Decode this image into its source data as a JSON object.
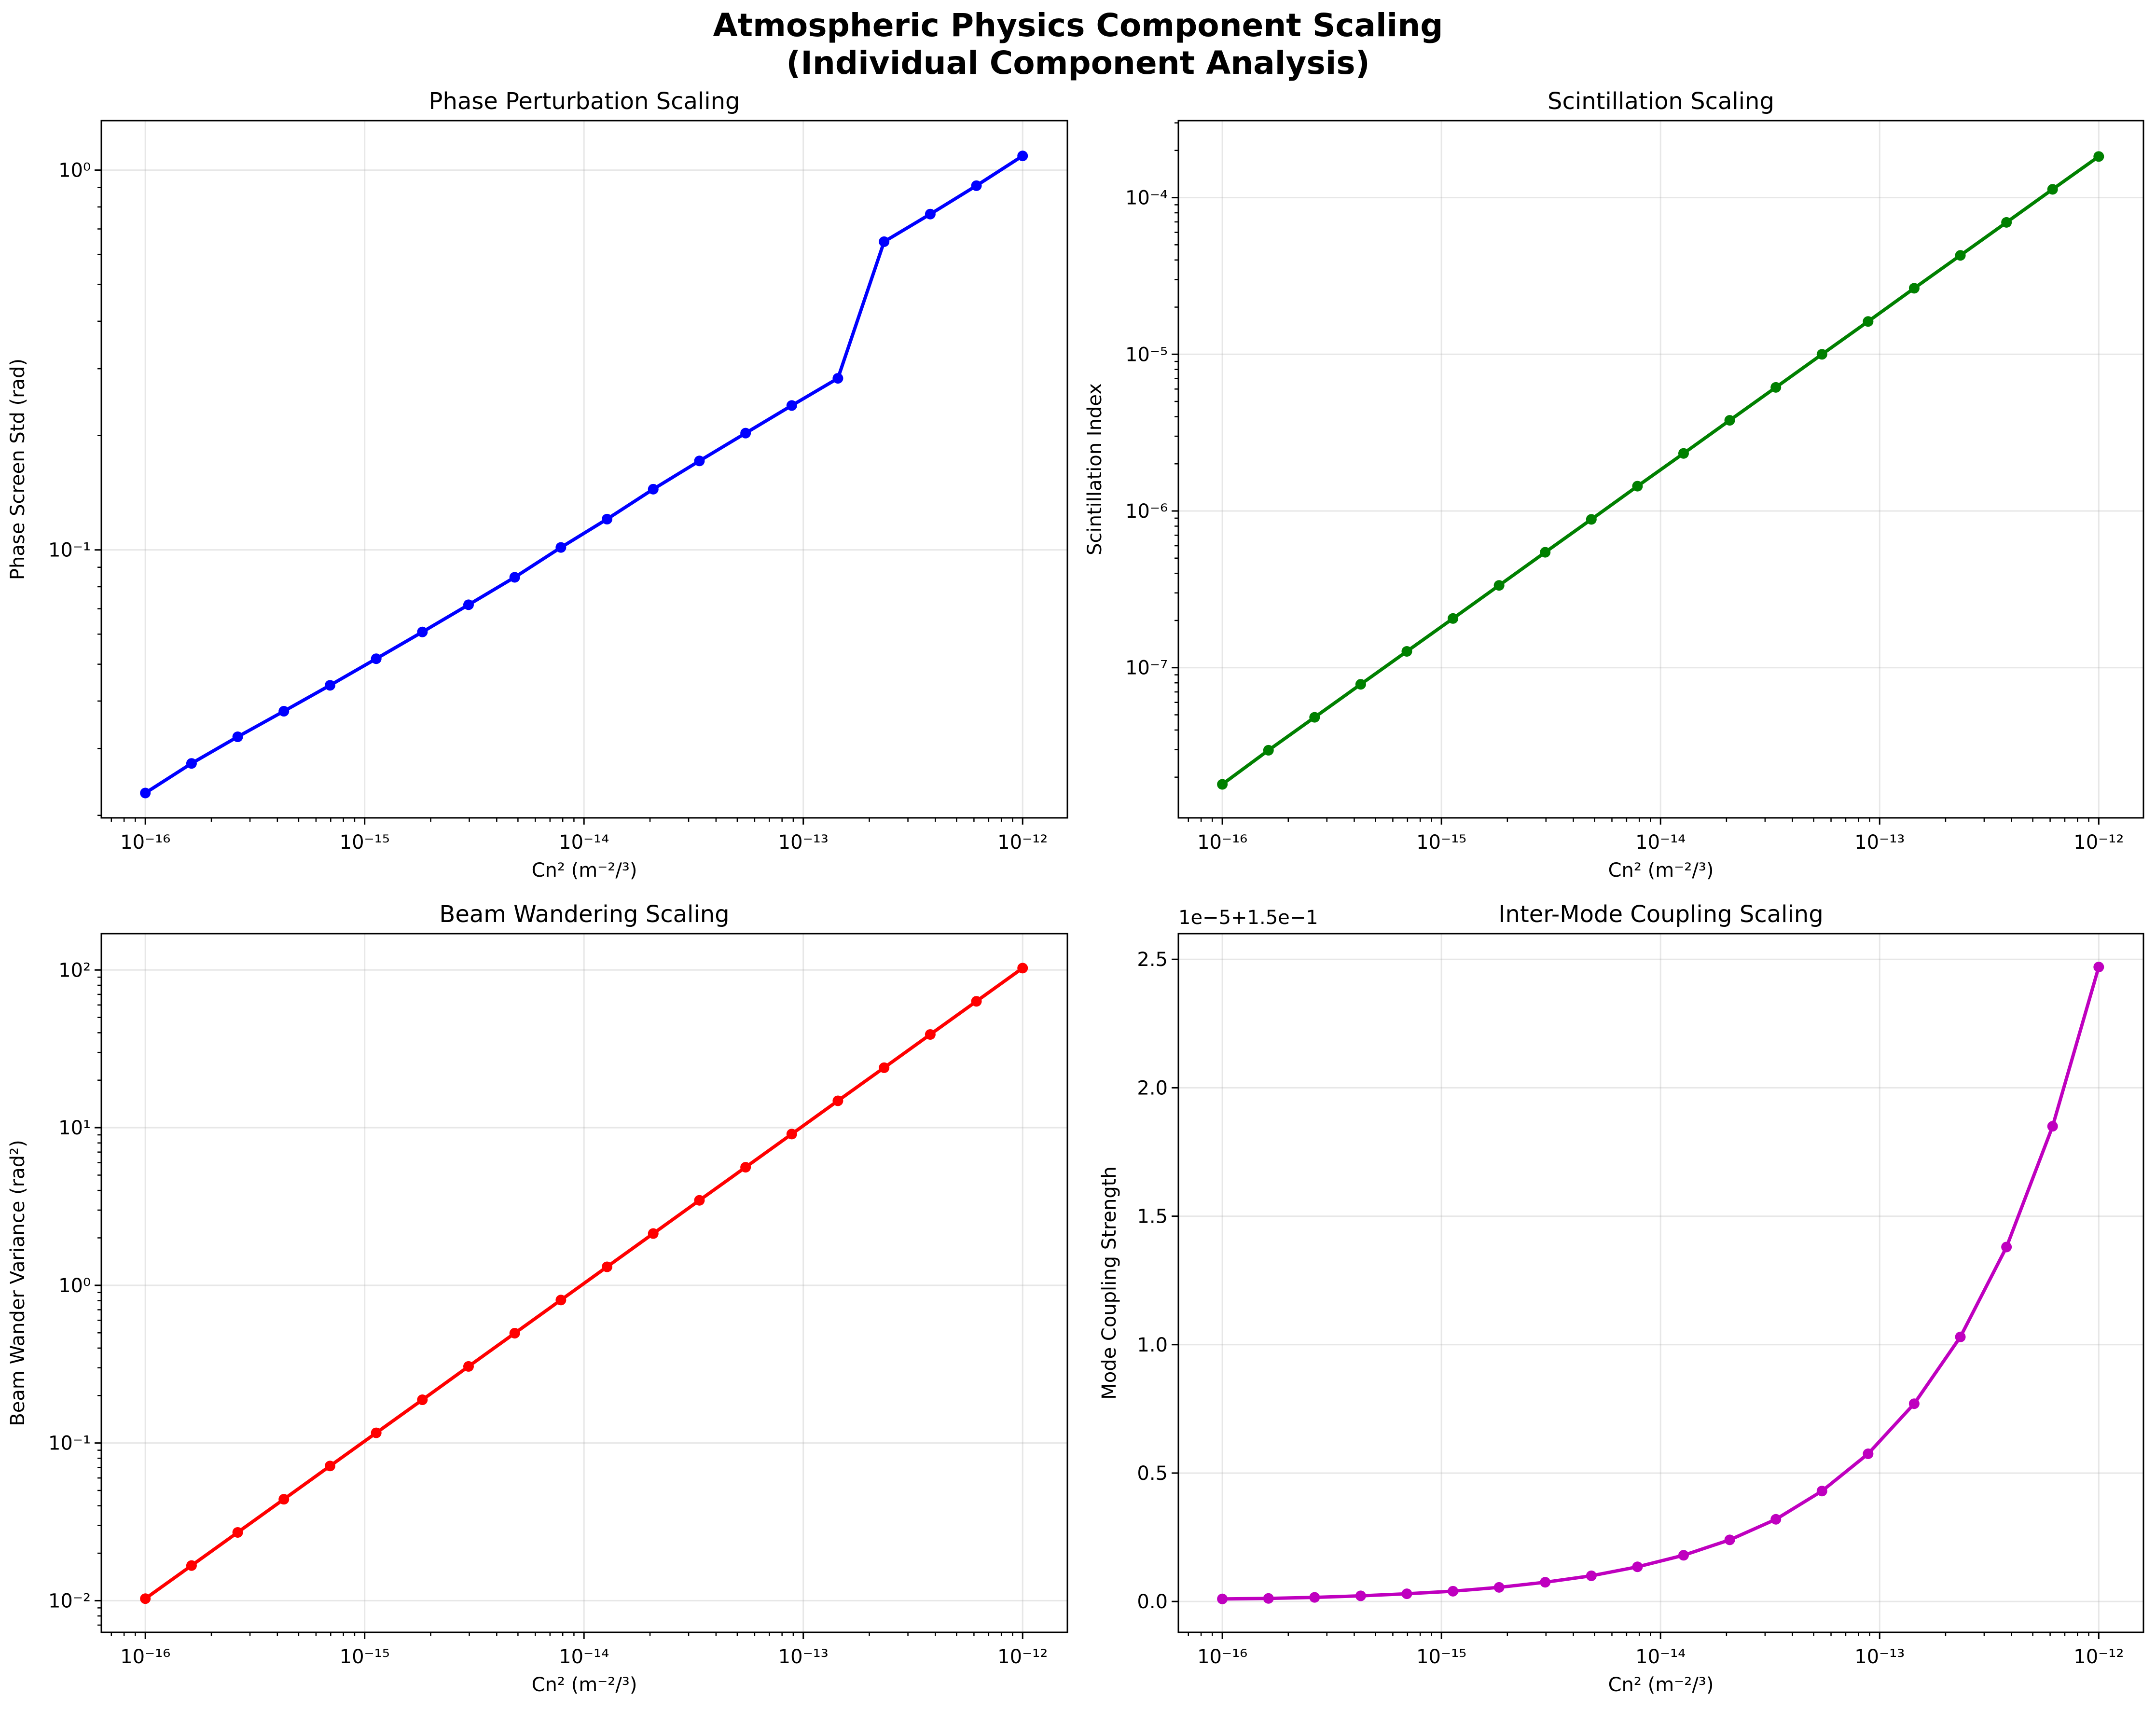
{
  "figure": {
    "title_line1": "Atmospheric Physics Component Scaling",
    "title_line2": "(Individual Component Analysis)"
  },
  "chart_data": [
    {
      "type": "line",
      "title": "Phase Perturbation Scaling",
      "xlabel": "Cn² (m⁻²/³)",
      "ylabel": "Phase Screen Std (rad)",
      "xscale": "log",
      "yscale": "log",
      "xlim": [
        6.3e-17,
        1.6e-12
      ],
      "ylim": [
        0.0197,
        1.35
      ],
      "grid": true,
      "color": "#0000ff",
      "x": [
        1e-16,
        1.624e-16,
        2.637e-16,
        4.281e-16,
        6.952e-16,
        1.129e-15,
        1.833e-15,
        2.976e-15,
        4.833e-15,
        7.848e-15,
        1.274e-14,
        2.069e-14,
        3.36e-14,
        5.456e-14,
        8.859e-14,
        1.438e-13,
        2.336e-13,
        3.793e-13,
        6.158e-13,
        1e-12
      ],
      "y": [
        0.0229,
        0.0274,
        0.0322,
        0.0376,
        0.044,
        0.0517,
        0.0608,
        0.0717,
        0.0847,
        0.1015,
        0.1205,
        0.1445,
        0.1715,
        0.203,
        0.24,
        0.283,
        0.648,
        0.766,
        0.91,
        1.09
      ],
      "xticks": [
        "10⁻¹⁶",
        "10⁻¹⁵",
        "10⁻¹⁴",
        "10⁻¹³",
        "10⁻¹²"
      ],
      "yticks": [
        "10⁻¹",
        "10⁰"
      ]
    },
    {
      "type": "line",
      "title": "Scintillation Scaling",
      "xlabel": "Cn² (m⁻²/³)",
      "ylabel": "Scintillation Index",
      "xscale": "log",
      "yscale": "log",
      "xlim": [
        6.3e-17,
        1.6e-12
      ],
      "ylim": [
        1.1e-08,
        0.00031
      ],
      "grid": true,
      "color": "#008000",
      "x": [
        1e-16,
        1.624e-16,
        2.637e-16,
        4.281e-16,
        6.952e-16,
        1.129e-15,
        1.833e-15,
        2.976e-15,
        4.833e-15,
        7.848e-15,
        1.274e-14,
        2.069e-14,
        3.36e-14,
        5.456e-14,
        8.859e-14,
        1.438e-13,
        2.336e-13,
        3.793e-13,
        6.158e-13,
        1e-12
      ],
      "y": [
        1.8e-08,
        2.97e-08,
        4.82e-08,
        7.83e-08,
        1.27e-07,
        2.06e-07,
        3.35e-07,
        5.45e-07,
        8.84e-07,
        1.44e-06,
        2.33e-06,
        3.79e-06,
        6.15e-06,
        1e-05,
        1.62e-05,
        2.64e-05,
        4.28e-05,
        6.95e-05,
        0.000113,
        0.000183
      ],
      "xticks": [
        "10⁻¹⁶",
        "10⁻¹⁵",
        "10⁻¹⁴",
        "10⁻¹³",
        "10⁻¹²"
      ],
      "yticks": [
        "10⁻⁷",
        "10⁻⁶",
        "10⁻⁵",
        "10⁻⁴"
      ]
    },
    {
      "type": "line",
      "title": "Beam Wandering Scaling",
      "xlabel": "Cn² (m⁻²/³)",
      "ylabel": "Beam Wander Variance (rad²)",
      "xscale": "log",
      "yscale": "log",
      "xlim": [
        6.3e-17,
        1.6e-12
      ],
      "ylim": [
        0.0063,
        170
      ],
      "grid": true,
      "color": "#ff0000",
      "x": [
        1e-16,
        1.624e-16,
        2.637e-16,
        4.281e-16,
        6.952e-16,
        1.129e-15,
        1.833e-15,
        2.976e-15,
        4.833e-15,
        7.848e-15,
        1.274e-14,
        2.069e-14,
        3.36e-14,
        5.456e-14,
        8.859e-14,
        1.438e-13,
        2.336e-13,
        3.793e-13,
        6.158e-13,
        1e-12
      ],
      "y": [
        0.0103,
        0.0167,
        0.0271,
        0.044,
        0.0715,
        0.116,
        0.188,
        0.306,
        0.497,
        0.807,
        1.31,
        2.13,
        3.46,
        5.61,
        9.11,
        14.8,
        24.0,
        39.0,
        63.3,
        102.8
      ],
      "xticks": [
        "10⁻¹⁶",
        "10⁻¹⁵",
        "10⁻¹⁴",
        "10⁻¹³",
        "10⁻¹²"
      ],
      "yticks": [
        "10⁻²",
        "10⁻¹",
        "10⁰",
        "10¹",
        "10²"
      ]
    },
    {
      "type": "line",
      "title": "Inter-Mode Coupling Scaling",
      "xlabel": "Cn² (m⁻²/³)",
      "ylabel": "Mode Coupling Strength",
      "offset_label": "1e−5+1.5e−1",
      "xscale": "log",
      "yscale": "linear",
      "xlim": [
        6.3e-17,
        1.6e-12
      ],
      "ylim": [
        -0.12,
        2.6
      ],
      "grid": true,
      "color": "#bf00bf",
      "x": [
        1e-16,
        1.624e-16,
        2.637e-16,
        4.281e-16,
        6.952e-16,
        1.129e-15,
        1.833e-15,
        2.976e-15,
        4.833e-15,
        7.848e-15,
        1.274e-14,
        2.069e-14,
        3.36e-14,
        5.456e-14,
        8.859e-14,
        1.438e-13,
        2.336e-13,
        3.793e-13,
        6.158e-13,
        1e-12
      ],
      "y": [
        0.01,
        0.012,
        0.016,
        0.022,
        0.03,
        0.04,
        0.055,
        0.075,
        0.1,
        0.135,
        0.18,
        0.24,
        0.32,
        0.43,
        0.575,
        0.77,
        1.03,
        1.38,
        1.85,
        2.47
      ],
      "xticks": [
        "10⁻¹⁶",
        "10⁻¹⁵",
        "10⁻¹⁴",
        "10⁻¹³",
        "10⁻¹²"
      ],
      "yticks": [
        "0.0",
        "0.5",
        "1.0",
        "1.5",
        "2.0",
        "2.5"
      ]
    }
  ]
}
